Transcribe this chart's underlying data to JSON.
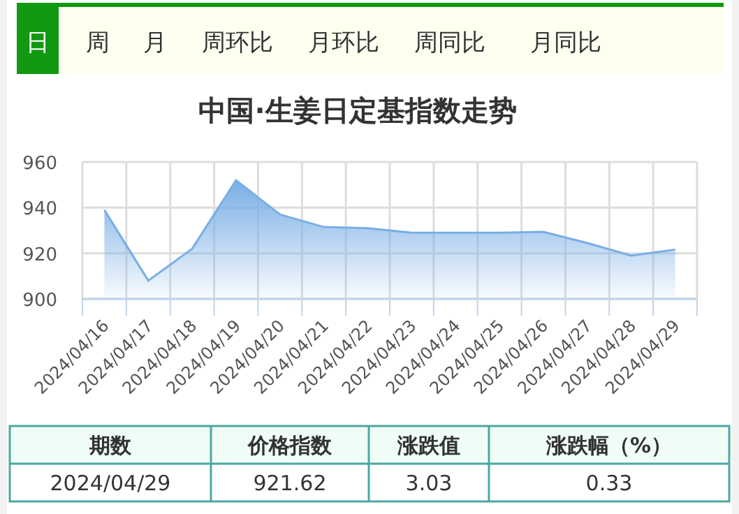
{
  "chart_data": {
    "type": "area",
    "title": "中国·生姜日定基指数走势",
    "categories": [
      "2024/04/16",
      "2024/04/17",
      "2024/04/18",
      "2024/04/19",
      "2024/04/20",
      "2024/04/21",
      "2024/04/22",
      "2024/04/23",
      "2024/04/24",
      "2024/04/25",
      "2024/04/26",
      "2024/04/27",
      "2024/04/28",
      "2024/04/29"
    ],
    "series": [
      {
        "color": "#78aee6",
        "values": [
          939,
          908,
          922,
          952,
          937,
          931.5,
          931,
          929,
          929,
          929,
          929.4,
          924.5,
          919,
          921.62
        ]
      }
    ],
    "ylim": [
      900,
      960
    ],
    "yticks": [
      900,
      920,
      940,
      960
    ],
    "grid": true,
    "annotations": [
      "日",
      "周",
      "月",
      "周环比",
      "月环比",
      "周同比",
      "月同比",
      "期数",
      "价格指数",
      "涨跌值",
      "涨跌幅（%）",
      "2024/04/29",
      "921.62",
      "3.03",
      "0.33"
    ]
  }
}
